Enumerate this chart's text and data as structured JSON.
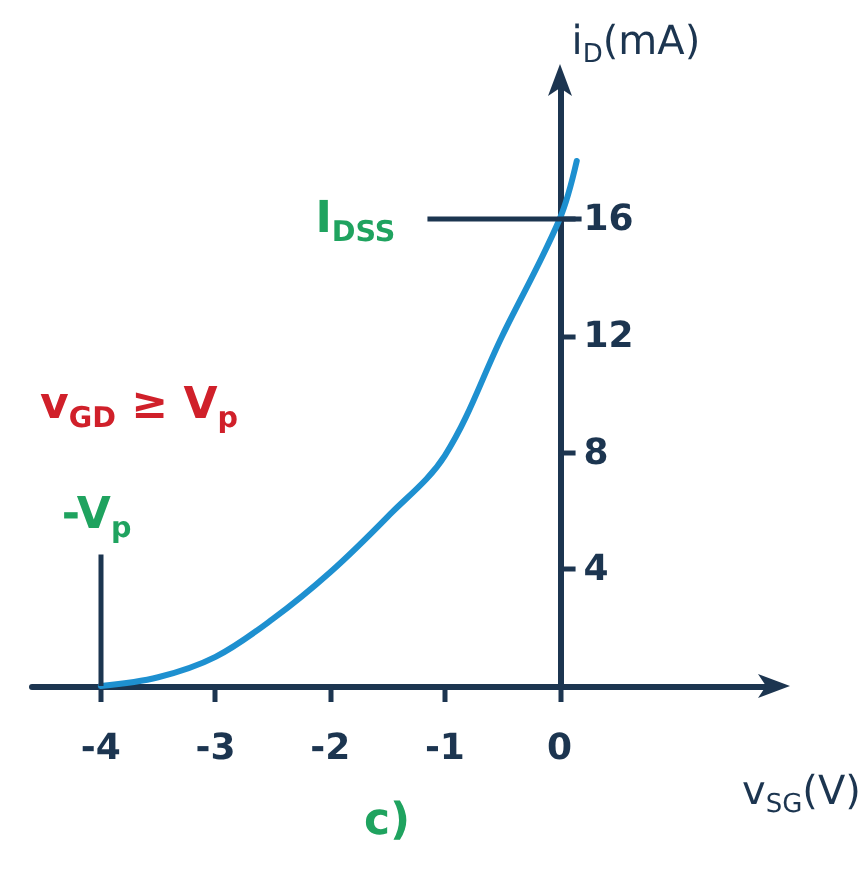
{
  "chart_data": {
    "type": "line",
    "xlabel": "v$_{SG}$(V)",
    "ylabel": "i$_{D}$(mA)",
    "x": [
      -4,
      -3.5,
      -3,
      -2.5,
      -2,
      -1.5,
      -1,
      -0.5,
      0,
      0.15
    ],
    "values": [
      0,
      0.3,
      1,
      2.3,
      3.9,
      5.8,
      7.9,
      12,
      16,
      18
    ],
    "color": "#1e90d0",
    "marker": "none",
    "line_style": "solid",
    "xlim": [
      -4.6,
      1.8
    ],
    "ylim": [
      0,
      20.5
    ],
    "xticks": [
      -4,
      -3,
      -2,
      -1,
      0
    ],
    "yticks": [
      4,
      8,
      12,
      16
    ],
    "ref_lines": [
      {
        "axis": "y",
        "value": 16,
        "label": "I$_{DSS}$",
        "color": "#1c3550"
      },
      {
        "axis": "x",
        "value": -4,
        "label": "-V$_{p}$",
        "color": "#1c3550"
      }
    ],
    "annotations": [
      "v$_{GD}$ ≥ V$_{p}$",
      "c)"
    ]
  }
}
